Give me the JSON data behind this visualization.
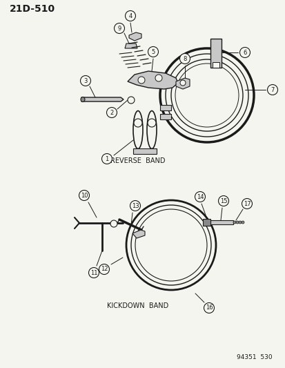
{
  "title": "21D-510",
  "background_color": "#f5f5f0",
  "fig_width": 4.14,
  "fig_height": 5.33,
  "dpi": 100,
  "reverse_band_label": "REVERSE  BAND",
  "kickdown_band_label": "KICKDOWN  BAND",
  "footer_text": "94351  530",
  "line_color": "#1a1a1a",
  "text_color": "#1a1a1a",
  "part_gray": "#c8c8c8",
  "part_dark": "#888888"
}
